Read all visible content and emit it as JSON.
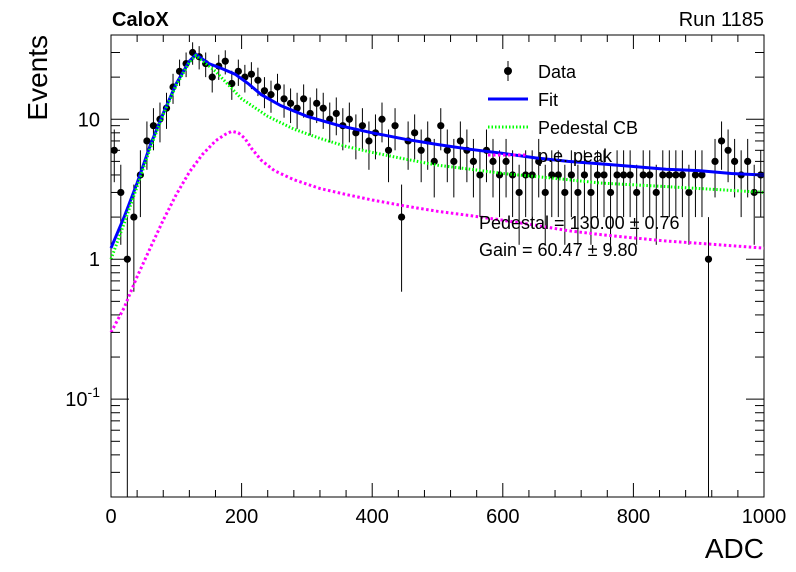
{
  "header": {
    "experiment": "CaloX",
    "run": "Run 1185"
  },
  "chart_data": {
    "type": "scatter",
    "xlabel": "ADC",
    "ylabel": "Events",
    "xlim": [
      0,
      1000
    ],
    "ylim": [
      0.02,
      40
    ],
    "yscale": "log",
    "grid": false,
    "legend_position": "top-right",
    "xticks": [
      0,
      200,
      400,
      600,
      800,
      1000
    ],
    "yticks": [
      {
        "value": 0.1,
        "label": "10",
        "exp": "-1"
      },
      {
        "value": 1,
        "label": "1",
        "exp": ""
      },
      {
        "value": 10,
        "label": "10",
        "exp": ""
      }
    ],
    "legend": [
      {
        "label": "Data",
        "style": "marker",
        "color": "#000000"
      },
      {
        "label": "Fit",
        "style": "solid",
        "color": "#0000ff"
      },
      {
        "label": "Pedestal CB",
        "style": "dotted",
        "color": "#00ff00"
      },
      {
        "label": "p.e. peak",
        "style": "dashed",
        "color": "#ff00ff"
      }
    ],
    "fit_results": [
      {
        "text": "Pedestal = 130.00 ± 0.76"
      },
      {
        "text": "Gain = 60.47 ± 9.80"
      }
    ],
    "series": [
      {
        "name": "Data",
        "color": "#000000",
        "x": [
          5,
          15,
          25,
          35,
          45,
          55,
          65,
          75,
          85,
          95,
          105,
          115,
          125,
          135,
          145,
          155,
          165,
          175,
          185,
          195,
          205,
          215,
          225,
          235,
          245,
          255,
          265,
          275,
          285,
          295,
          305,
          315,
          325,
          335,
          345,
          355,
          365,
          375,
          385,
          395,
          405,
          415,
          425,
          435,
          445,
          455,
          465,
          475,
          485,
          495,
          505,
          515,
          525,
          535,
          545,
          555,
          565,
          575,
          585,
          595,
          605,
          615,
          625,
          635,
          645,
          655,
          665,
          675,
          685,
          695,
          705,
          715,
          725,
          735,
          745,
          755,
          765,
          775,
          785,
          795,
          805,
          815,
          825,
          835,
          845,
          855,
          865,
          875,
          885,
          895,
          905,
          915,
          925,
          935,
          945,
          955,
          965,
          975,
          985,
          995
        ],
        "y": [
          6,
          3,
          1,
          2,
          4,
          7,
          9,
          10,
          12,
          17,
          22,
          25,
          30,
          28,
          25,
          20,
          24,
          26,
          18,
          22,
          20,
          21,
          19,
          16,
          15,
          17,
          14,
          13,
          12,
          14,
          11,
          13,
          12,
          10,
          11,
          9,
          10,
          8,
          9,
          7,
          8,
          10,
          6,
          9,
          2,
          7,
          8,
          6,
          7,
          5,
          9,
          6,
          5,
          7,
          6,
          5,
          4,
          6,
          5,
          4,
          5,
          4,
          3,
          4,
          4,
          5,
          3,
          4,
          4,
          3,
          4,
          3,
          4,
          3,
          4,
          4,
          3,
          4,
          4,
          4,
          3,
          4,
          4,
          3,
          4,
          4,
          4,
          4,
          3,
          4,
          4,
          1,
          5,
          7,
          6,
          5,
          4,
          5,
          3,
          4
        ]
      },
      {
        "name": "Fit",
        "color": "#0000ff",
        "x": [
          0,
          20,
          40,
          60,
          80,
          100,
          120,
          130,
          150,
          170,
          190,
          210,
          230,
          260,
          300,
          350,
          400,
          450,
          500,
          550,
          600,
          650,
          700,
          750,
          800,
          850,
          900,
          950,
          1000
        ],
        "y": [
          1.2,
          2.0,
          3.5,
          6.5,
          11,
          18,
          26,
          29,
          25,
          23,
          21,
          18,
          15,
          12.5,
          10.5,
          9.0,
          8.0,
          7.2,
          6.6,
          6.1,
          5.7,
          5.3,
          5.0,
          4.8,
          4.6,
          4.4,
          4.3,
          4.1,
          4.0
        ]
      },
      {
        "name": "Pedestal CB",
        "color": "#00ff00",
        "x": [
          0,
          20,
          40,
          60,
          80,
          100,
          120,
          130,
          160,
          200,
          240,
          280,
          320,
          360,
          400,
          450,
          500,
          550,
          600,
          650,
          700,
          750,
          800,
          850,
          900,
          950,
          1000
        ],
        "y": [
          1.0,
          1.8,
          3.3,
          6.2,
          10.8,
          17.5,
          25.5,
          28.5,
          22,
          14,
          10.5,
          8.5,
          7.3,
          6.4,
          5.8,
          5.2,
          4.7,
          4.4,
          4.1,
          3.9,
          3.7,
          3.5,
          3.4,
          3.3,
          3.2,
          3.1,
          3.0
        ]
      },
      {
        "name": "p.e. peak",
        "color": "#ff00ff",
        "x": [
          0,
          20,
          40,
          60,
          80,
          100,
          120,
          140,
          160,
          175,
          185,
          195,
          205,
          215,
          230,
          250,
          280,
          320,
          360,
          400,
          450,
          500,
          550,
          600,
          650,
          700,
          750,
          800,
          850,
          900,
          950,
          1000
        ],
        "y": [
          0.3,
          0.45,
          0.75,
          1.2,
          1.9,
          2.9,
          4.2,
          5.6,
          7.0,
          7.8,
          8.2,
          8.0,
          7.3,
          6.2,
          5.1,
          4.3,
          3.7,
          3.2,
          2.9,
          2.65,
          2.4,
          2.2,
          2.05,
          1.9,
          1.75,
          1.6,
          1.5,
          1.42,
          1.35,
          1.3,
          1.25,
          1.2
        ]
      }
    ]
  }
}
